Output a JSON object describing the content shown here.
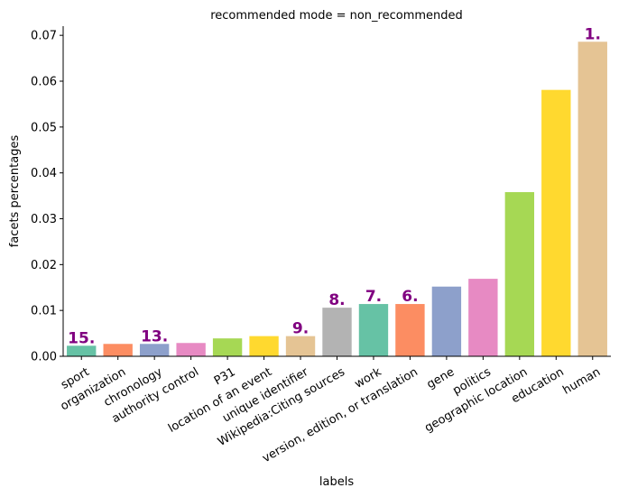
{
  "chart_data": {
    "type": "bar",
    "title": "recommended mode = non_recommended",
    "xlabel": "labels",
    "ylabel": "facets percentages",
    "ylim": [
      0,
      0.072
    ],
    "yticks": [
      "0.00",
      "0.01",
      "0.02",
      "0.03",
      "0.04",
      "0.05",
      "0.06",
      "0.07"
    ],
    "grid": false,
    "categories": [
      "sport",
      "organization",
      "chronology",
      "authority control",
      "P31",
      "location of an event",
      "unique identifier",
      "Wikipedia:Citing sources",
      "work",
      "version, edition, or translation",
      "gene",
      "politics",
      "geographic location",
      "education",
      "human"
    ],
    "values": [
      0.0023,
      0.0027,
      0.0027,
      0.0029,
      0.0039,
      0.0044,
      0.0044,
      0.0106,
      0.0114,
      0.0114,
      0.0152,
      0.0169,
      0.0358,
      0.0581,
      0.0686
    ],
    "colors": [
      "#66c2a5",
      "#fc8d62",
      "#8da0cb",
      "#e78ac3",
      "#a6d854",
      "#ffd92f",
      "#e5c494",
      "#b3b3b3",
      "#66c2a5",
      "#fc8d62",
      "#8da0cb",
      "#e78ac3",
      "#a6d854",
      "#ffd92f",
      "#e5c494"
    ],
    "annotations": [
      {
        "category": "sport",
        "text": "15."
      },
      {
        "category": "chronology",
        "text": "13."
      },
      {
        "category": "unique identifier",
        "text": "9."
      },
      {
        "category": "Wikipedia:Citing sources",
        "text": "8."
      },
      {
        "category": "work",
        "text": "7."
      },
      {
        "category": "version, edition, or translation",
        "text": "6."
      },
      {
        "category": "human",
        "text": "1."
      }
    ],
    "annotation_color": "#800080"
  }
}
